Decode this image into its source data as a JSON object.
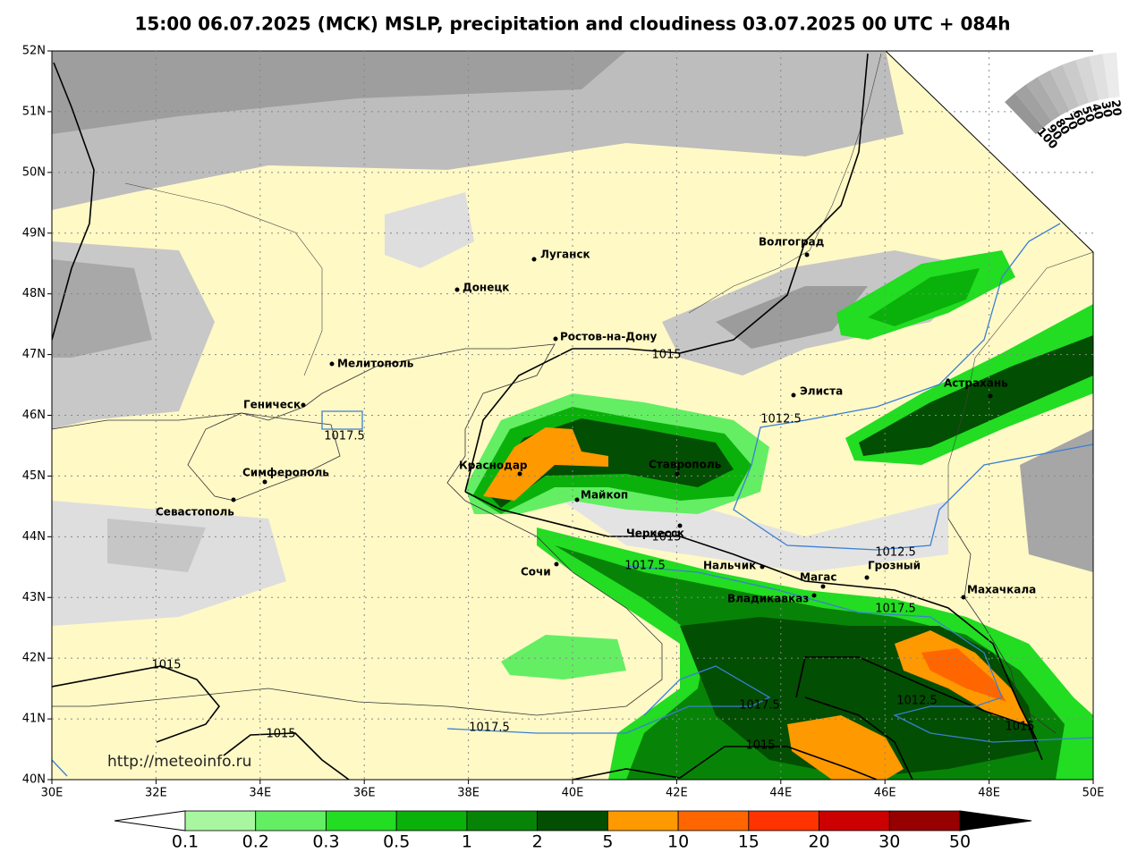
{
  "title": "15:00 06.07.2025 (MCK) MSLP, precipitation and cloudiness 03.07.2025 00 UTC + 084h",
  "url": "http://meteoinfo.ru",
  "latitude_labels": [
    "52N",
    "51N",
    "50N",
    "49N",
    "48N",
    "47N",
    "46N",
    "45N",
    "44N",
    "43N",
    "42N",
    "41N",
    "40N"
  ],
  "longitude_labels": [
    "30E",
    "32E",
    "34E",
    "36E",
    "38E",
    "40E",
    "42E",
    "44E",
    "46E",
    "48E",
    "50E"
  ],
  "cities": [
    "Луганск",
    "Донецк",
    "Ростов-на-Дону",
    "Мелитополь",
    "Геническ",
    "Симферополь",
    "Севастополь",
    "Краснодар",
    "Майкоп",
    "Ставрополь",
    "Черкесск",
    "Сочи",
    "Нальчик",
    "Магас",
    "Грозный",
    "Владикавказ",
    "Махачкала",
    "Элиста",
    "Волгоград",
    "Астрахань"
  ],
  "isobar_labels": [
    "1015",
    "1012.5",
    "1017.5",
    "1015",
    "1017.5",
    "1012.5",
    "1017.5",
    "1015",
    "1015",
    "1017.5",
    "1017.5",
    "1012.5",
    "1015",
    "1015"
  ],
  "cloudiness_scale": [
    "100",
    "90",
    "80",
    "70",
    "60",
    "50",
    "40",
    "30",
    "20"
  ],
  "precipitation_scale": {
    "labels": [
      "0.1",
      "0.2",
      "0.3",
      "0.5",
      "1",
      "2",
      "5",
      "10",
      "15",
      "20",
      "30",
      "50"
    ],
    "colors": [
      "#a8f7a0",
      "#64ee64",
      "#22dd22",
      "#0bb10b",
      "#078407",
      "#024e02",
      "#ff9900",
      "#ff6600",
      "#ff3300",
      "#cc0000",
      "#960000"
    ]
  }
}
